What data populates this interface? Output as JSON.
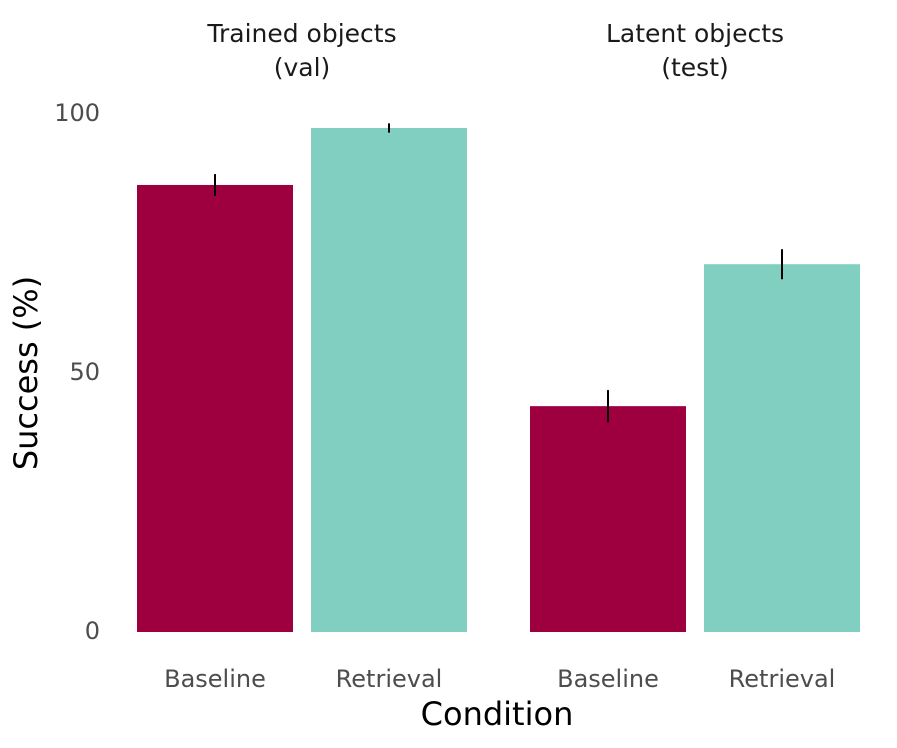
{
  "chart_data": {
    "type": "bar",
    "ylabel": "Success (%)",
    "xlabel": "Condition",
    "ylim": [
      0,
      100
    ],
    "yticks": [
      0,
      50,
      100
    ],
    "colors": [
      "#9e003f",
      "#80cfc1"
    ],
    "facets": [
      {
        "title": [
          "Trained objects",
          "(val)"
        ],
        "categories": [
          "Baseline",
          "Retrieval"
        ],
        "values": [
          86.3,
          97.3
        ],
        "errors": [
          2.1,
          0.9
        ]
      },
      {
        "title": [
          "Latent objects",
          "(test)"
        ],
        "categories": [
          "Baseline",
          "Retrieval"
        ],
        "values": [
          43.6,
          71.0
        ],
        "errors": [
          3.1,
          2.9
        ]
      }
    ]
  }
}
